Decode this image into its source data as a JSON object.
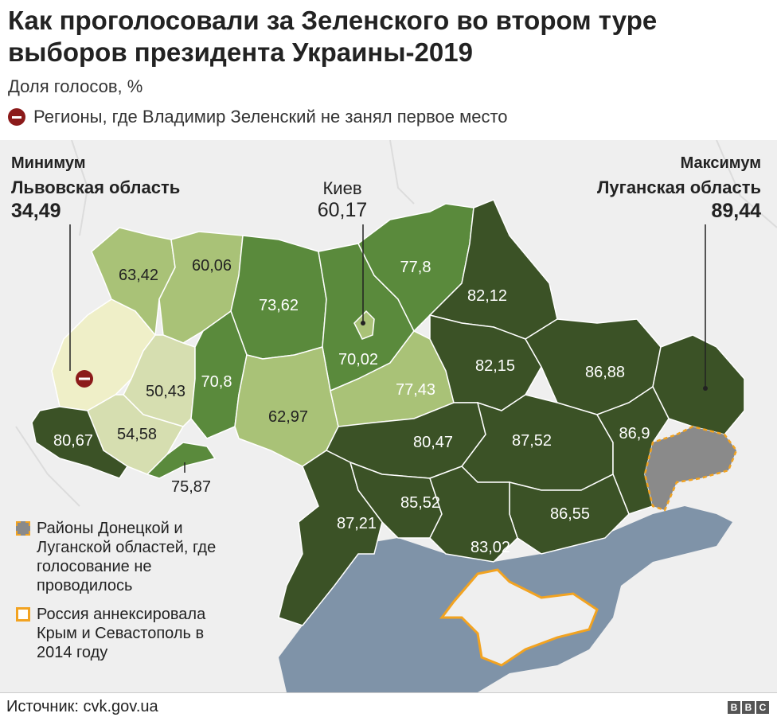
{
  "title": "Как проголосовали за Зеленского во втором туре выборов президента Украины-2019",
  "subtitle": "Доля голосов, %",
  "note": "Регионы, где Владимир Зеленский не занял первое место",
  "minimum": {
    "label": "Минимум",
    "region": "Львовская область",
    "value": "34,49"
  },
  "maximum": {
    "label": "Максимум",
    "region": "Луганская область",
    "value": "89,44"
  },
  "kyiv": {
    "label": "Киев",
    "value": "60,17"
  },
  "regions": [
    {
      "id": "volyn",
      "value": "63,42"
    },
    {
      "id": "rivne",
      "value": "60,06"
    },
    {
      "id": "zhytomyr",
      "value": "73,62"
    },
    {
      "id": "kyiv-oblast",
      "value": "70,02"
    },
    {
      "id": "chernihiv",
      "value": "77,8"
    },
    {
      "id": "sumy",
      "value": "82,12"
    },
    {
      "id": "lviv",
      "value": "34,49"
    },
    {
      "id": "ternopil",
      "value": "50,43"
    },
    {
      "id": "khmelnytskyi",
      "value": "70,8"
    },
    {
      "id": "ivano-frankivsk",
      "value": "54,58"
    },
    {
      "id": "zakarpattia",
      "value": "80,67"
    },
    {
      "id": "chernivtsi",
      "value": "75,87"
    },
    {
      "id": "vinnytsia",
      "value": "62,97"
    },
    {
      "id": "cherkasy",
      "value": "77,43"
    },
    {
      "id": "poltava",
      "value": "82,15"
    },
    {
      "id": "kharkiv",
      "value": "86,88"
    },
    {
      "id": "luhansk",
      "value": "89,44"
    },
    {
      "id": "kirovohrad",
      "value": "80,47"
    },
    {
      "id": "dnipropetrovsk",
      "value": "87,52"
    },
    {
      "id": "donetsk",
      "value": "86,9"
    },
    {
      "id": "odesa",
      "value": "87,21"
    },
    {
      "id": "mykolaiv",
      "value": "85,52"
    },
    {
      "id": "zaporizhzhia",
      "value": "86,55"
    },
    {
      "id": "kherson",
      "value": "83,02"
    }
  ],
  "legend": {
    "no_vote": "Районы Донецкой и Луганской областей, где голосование не проводилось",
    "annexed": "Россия аннексировала Крым и Севастополь в 2014 году"
  },
  "source": "Источник: cvk.gov.ua",
  "bbc": [
    "B",
    "B",
    "C"
  ],
  "colors": {
    "lightest": "#efefc8",
    "light": "#d6deb0",
    "light_mid": "#a9c277",
    "mid": "#5a8a3c",
    "dark": "#3b5226",
    "no_vote": "#8a8a8a",
    "annexed_border": "#f2a321",
    "sea": "#7f93a8",
    "neighbors": "#efefef",
    "minimum_marker": "#8b1a1a"
  }
}
